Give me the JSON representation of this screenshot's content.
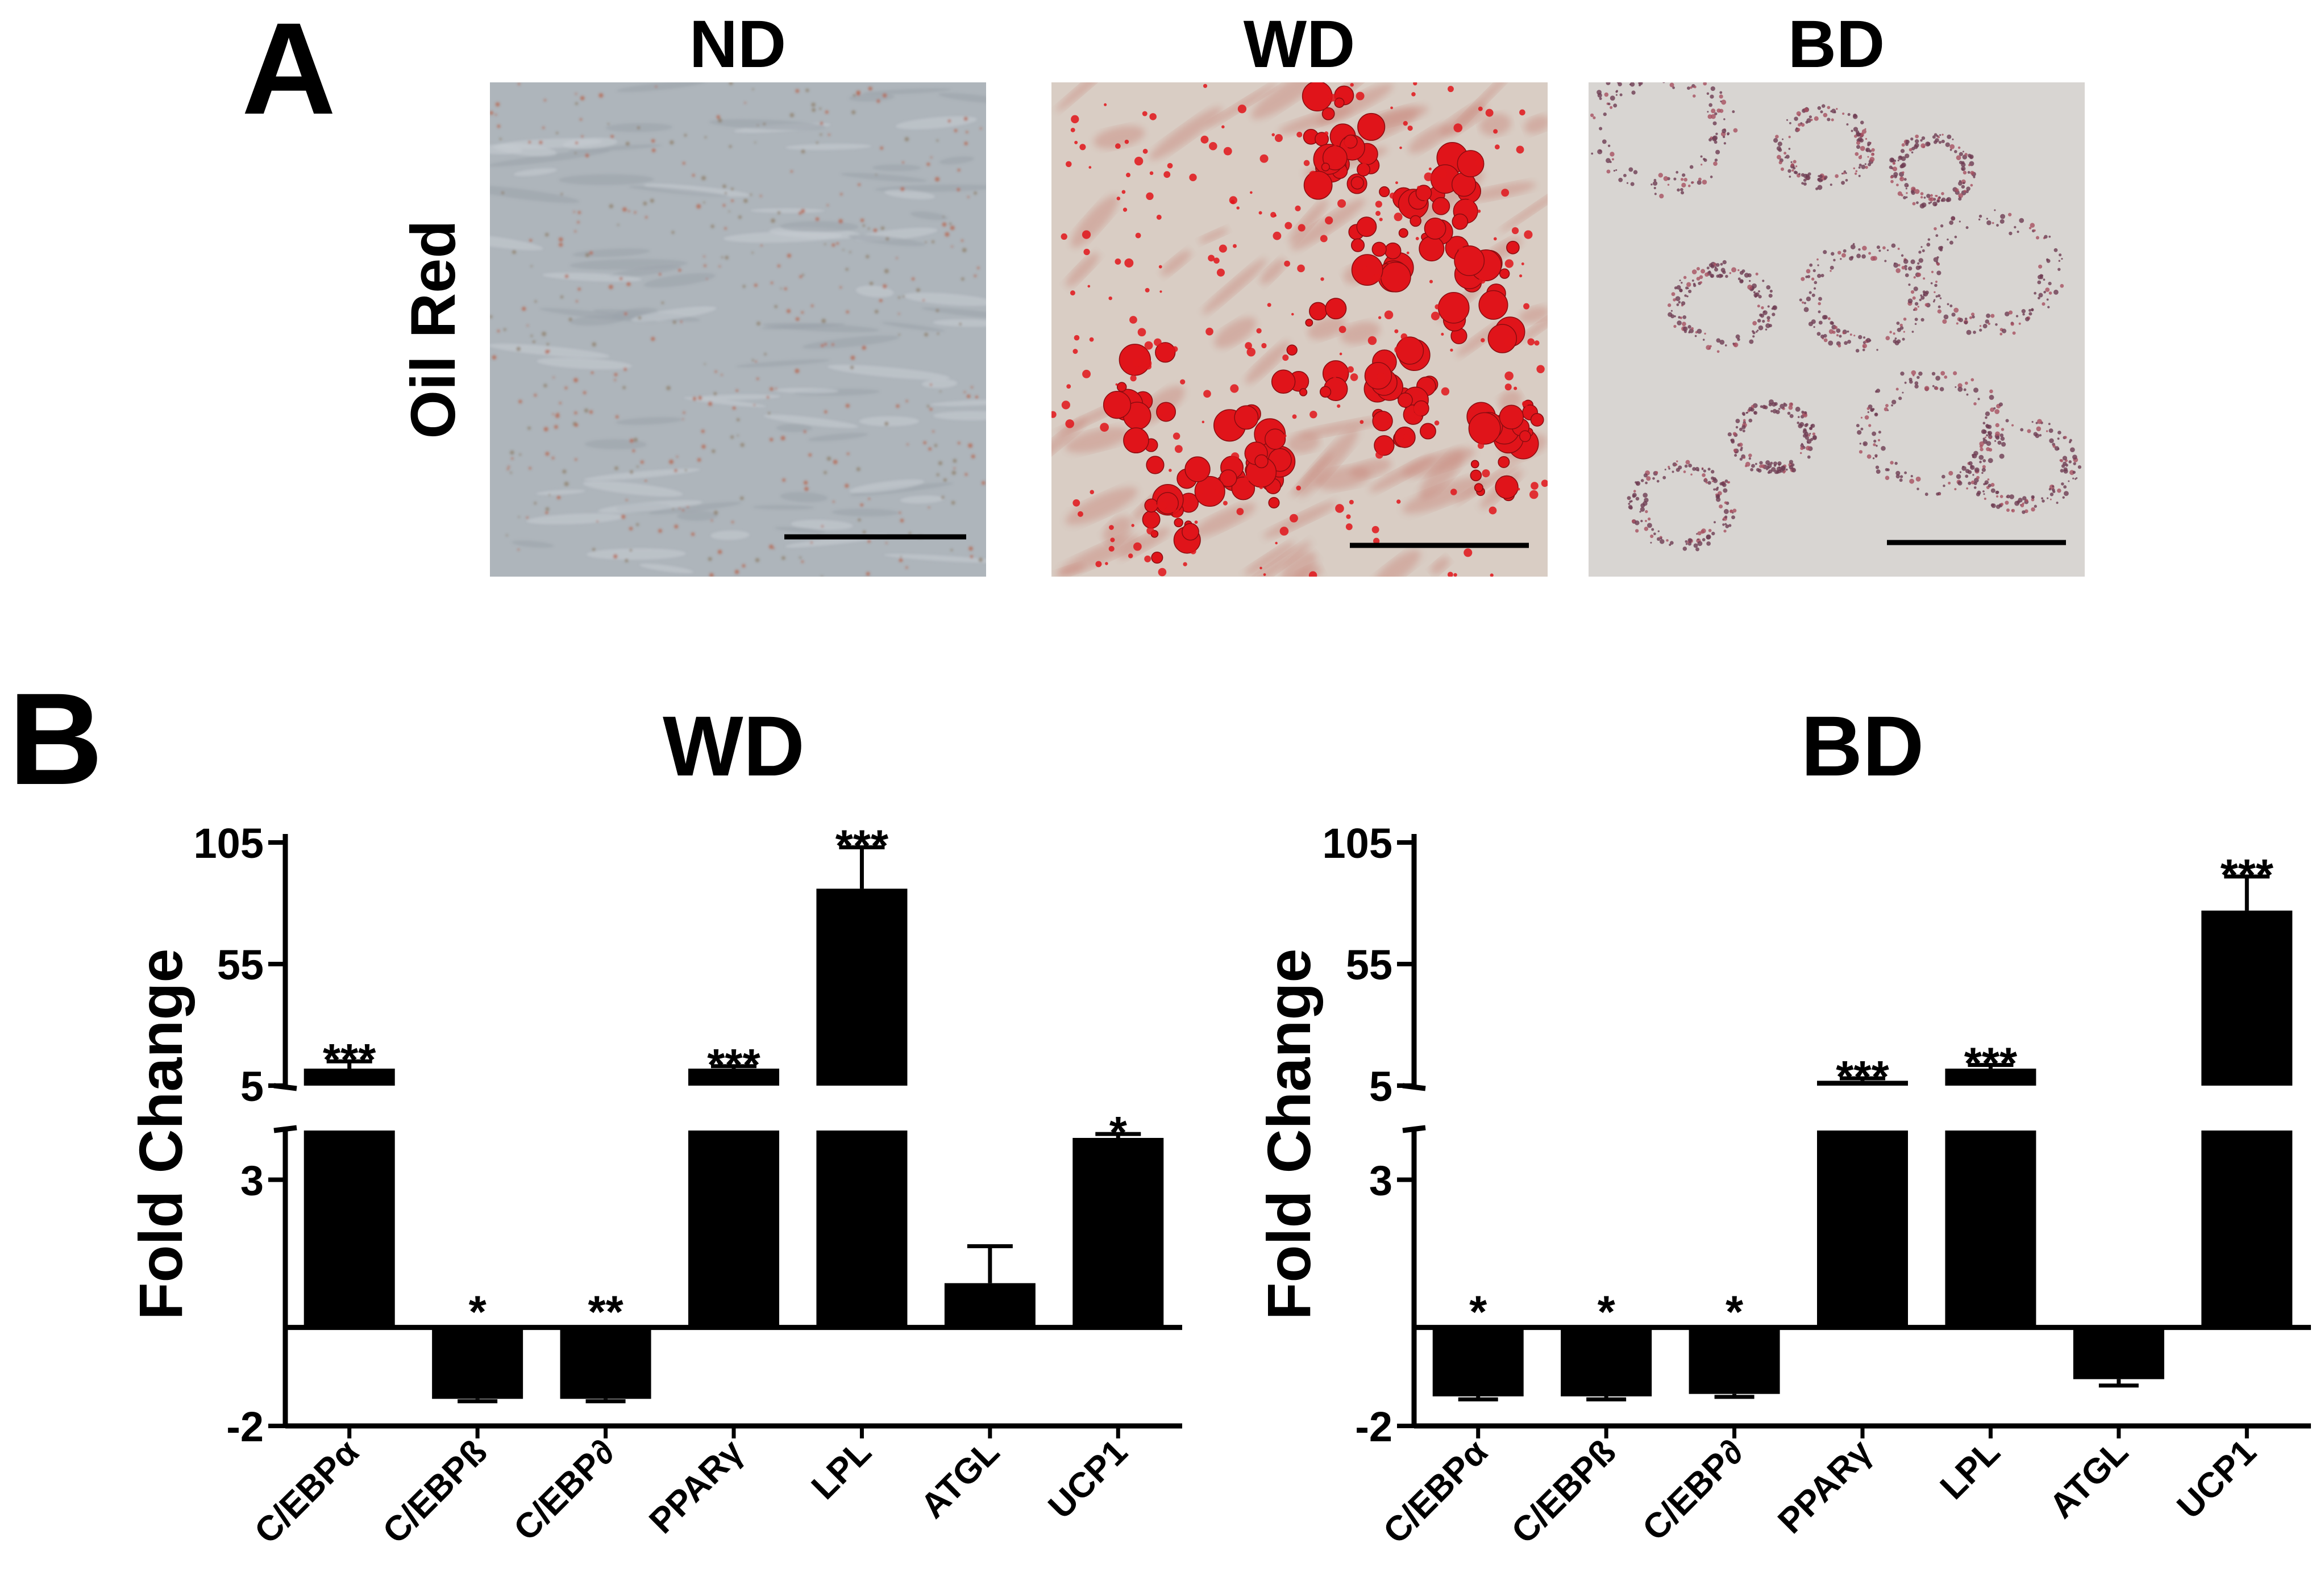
{
  "panel_a": {
    "letter": "A",
    "row_label": "Oil Red",
    "columns": [
      {
        "label": "ND",
        "stain": "light"
      },
      {
        "label": "WD",
        "stain": "heavy"
      },
      {
        "label": "BD",
        "stain": "medium"
      }
    ],
    "colors": {
      "red_lipid": "#e0141a",
      "light_bg": "#aeb5bb",
      "wd_bg": "#d9cdc4",
      "bd_bg": "#d8d5d2",
      "bd_stain": "#6e3c52"
    }
  },
  "panel_b": {
    "letter": "B"
  },
  "chart_data": [
    {
      "type": "bar",
      "title": "WD",
      "ylabel": "Fold Change",
      "xlabel": "",
      "broken_axis": true,
      "y_lower_segment": [
        -2,
        4
      ],
      "y_upper_segment": [
        5,
        105
      ],
      "yticks": [
        -2,
        3,
        5,
        55,
        105
      ],
      "categories": [
        "C/EBPα",
        "C/EBPß",
        "C/EBP∂",
        "PPARγ",
        "LPL",
        "ATGL",
        "UCP1"
      ],
      "values": [
        12,
        -1.45,
        -1.45,
        12,
        86,
        0.9,
        3.85
      ],
      "errors": [
        3,
        0.05,
        0.05,
        1,
        17,
        0.75,
        0.08
      ],
      "significance": [
        "***",
        "*",
        "**",
        "***",
        "***",
        "",
        "*"
      ],
      "bar_color": "#000000"
    },
    {
      "type": "bar",
      "title": "BD",
      "ylabel": "Fold Change",
      "xlabel": "",
      "broken_axis": true,
      "y_lower_segment": [
        -2,
        4
      ],
      "y_upper_segment": [
        5,
        105
      ],
      "yticks": [
        -2,
        3,
        5,
        55,
        105
      ],
      "categories": [
        "C/EBPα",
        "C/EBPß",
        "C/EBP∂",
        "PPARγ",
        "LPL",
        "ATGL",
        "UCP1"
      ],
      "values": [
        -1.4,
        -1.4,
        -1.35,
        7,
        12,
        -1.05,
        77
      ],
      "errors": [
        0.06,
        0.06,
        0.06,
        1,
        1.5,
        0.13,
        14
      ],
      "significance": [
        "*",
        "*",
        "*",
        "***",
        "***",
        "",
        "***"
      ],
      "bar_color": "#000000"
    }
  ]
}
